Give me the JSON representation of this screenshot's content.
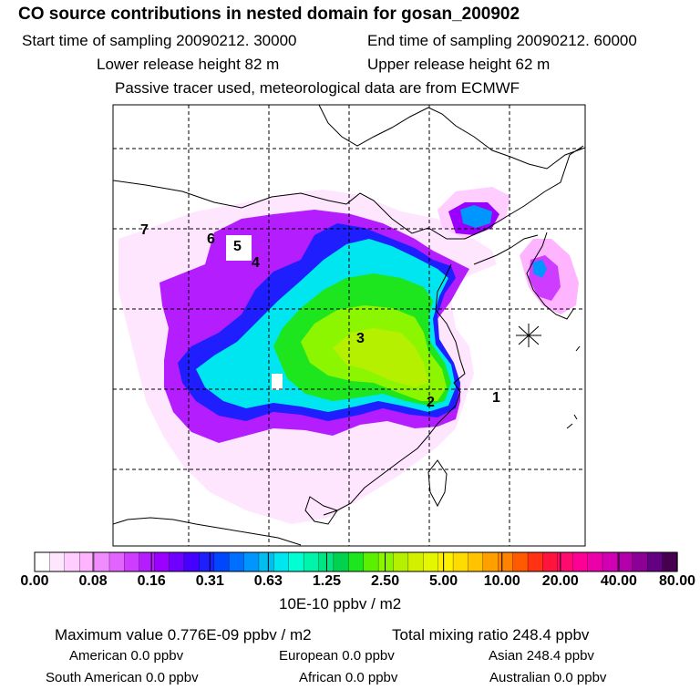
{
  "header": {
    "title": "CO  source contributions in nested domain for gosan_200902",
    "start_label": "Start time of sampling 20090212. 30000",
    "end_label": "End time of sampling 20090212. 60000",
    "lower_label": "Lower release height   82 m",
    "upper_label": "Upper release height   62 m",
    "note": "Passive tracer used, meteorological data are from ECMWF"
  },
  "map": {
    "markers": [
      "1",
      "2",
      "3",
      "4",
      "5",
      "6",
      "7"
    ]
  },
  "colorbar": {
    "labels": [
      "0.00",
      "0.08",
      "0.16",
      "0.31",
      "0.63",
      "1.25",
      "2.50",
      "5.00",
      "10.00",
      "20.00",
      "40.00",
      "80.00"
    ],
    "unit": "10E-10 ppbv / m2",
    "colors": [
      "#ffffff",
      "#ffe6ff",
      "#ffcdff",
      "#ffb4ff",
      "#f08cff",
      "#e164ff",
      "#cd3cff",
      "#b41eff",
      "#9b00ff",
      "#6e00ff",
      "#4600ff",
      "#1e1eff",
      "#0046ff",
      "#006eff",
      "#0096ff",
      "#00bef0",
      "#00e6f0",
      "#00ffd2",
      "#00f5aa",
      "#00e682",
      "#00d250",
      "#1ee61e",
      "#5af000",
      "#8cf500",
      "#b4f000",
      "#d2f000",
      "#e6f500",
      "#fff000",
      "#ffdc00",
      "#ffc300",
      "#ffa000",
      "#ff8200",
      "#ff5a00",
      "#ff3214",
      "#ff143c",
      "#ff0a6e",
      "#ff0096",
      "#eb00aa",
      "#d200b4",
      "#b400aa",
      "#8c0096",
      "#640082",
      "#460050"
    ]
  },
  "stats": {
    "max_label": "Maximum value  0.776E-09 ppbv / m2",
    "total_label": "Total mixing ratio     248.4 ppbv",
    "american": "American       0.0 ppbv",
    "european": "European       0.0 ppbv",
    "asian": "Asian     248.4 ppbv",
    "south_american": "South American       0.0 ppbv",
    "african": "African       0.0 ppbv",
    "australian": "Australian       0.0 ppbv"
  }
}
